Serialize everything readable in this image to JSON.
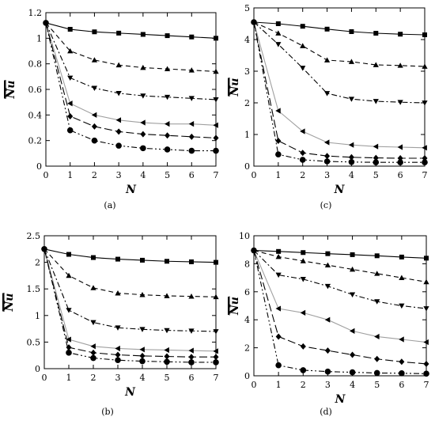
{
  "chart_data": [
    {
      "type": "line",
      "panel_label": "(a)",
      "xlabel": "N",
      "ylabel": "Nu",
      "xlim": [
        0,
        7
      ],
      "ylim": [
        0,
        1.2
      ],
      "xticks": [
        "0",
        "1",
        "2",
        "3",
        "4",
        "5",
        "6",
        "7"
      ],
      "yticks": [
        "0",
        "0.2",
        "0.4",
        "0.6",
        "0.8",
        "1",
        "1.2"
      ],
      "x": [
        0,
        1,
        2,
        3,
        4,
        5,
        6,
        7
      ],
      "series": [
        {
          "marker": "square",
          "style": "solid",
          "color": "#000000",
          "values": [
            1.12,
            1.07,
            1.05,
            1.04,
            1.03,
            1.02,
            1.01,
            1.0
          ]
        },
        {
          "marker": "triangle-up",
          "style": "dash",
          "color": "#000000",
          "values": [
            1.12,
            0.9,
            0.83,
            0.79,
            0.77,
            0.76,
            0.75,
            0.74
          ]
        },
        {
          "marker": "triangle-down",
          "style": "dashdot",
          "color": "#000000",
          "values": [
            1.12,
            0.69,
            0.61,
            0.57,
            0.55,
            0.54,
            0.53,
            0.52
          ]
        },
        {
          "marker": "triangle-left",
          "style": "solid",
          "color": "#a0a0a0",
          "values": [
            1.12,
            0.49,
            0.4,
            0.36,
            0.34,
            0.33,
            0.33,
            0.32
          ]
        },
        {
          "marker": "diamond",
          "style": "longdash",
          "color": "#000000",
          "values": [
            1.12,
            0.39,
            0.31,
            0.27,
            0.25,
            0.24,
            0.23,
            0.22
          ]
        },
        {
          "marker": "circle",
          "style": "dashdotdot",
          "color": "#000000",
          "values": [
            1.12,
            0.28,
            0.2,
            0.16,
            0.14,
            0.13,
            0.12,
            0.12
          ]
        }
      ]
    },
    {
      "type": "line",
      "panel_label": "(c)",
      "xlabel": "N",
      "ylabel": "Nu",
      "xlim": [
        0,
        7
      ],
      "ylim": [
        0,
        5
      ],
      "xticks": [
        "0",
        "1",
        "2",
        "3",
        "4",
        "5",
        "6",
        "7"
      ],
      "yticks": [
        "0",
        "1",
        "2",
        "3",
        "4",
        "5"
      ],
      "x": [
        0,
        1,
        2,
        3,
        4,
        5,
        6,
        7
      ],
      "series": [
        {
          "marker": "square",
          "style": "solid",
          "color": "#000000",
          "values": [
            4.55,
            4.5,
            4.42,
            4.33,
            4.25,
            4.2,
            4.17,
            4.15
          ]
        },
        {
          "marker": "triangle-up",
          "style": "dash",
          "color": "#000000",
          "values": [
            4.55,
            4.2,
            3.8,
            3.35,
            3.3,
            3.2,
            3.18,
            3.15
          ]
        },
        {
          "marker": "triangle-down",
          "style": "dashdot",
          "color": "#000000",
          "values": [
            4.55,
            3.85,
            3.1,
            2.3,
            2.12,
            2.05,
            2.02,
            2.0
          ]
        },
        {
          "marker": "triangle-left",
          "style": "solid",
          "color": "#a0a0a0",
          "values": [
            4.55,
            1.75,
            1.1,
            0.75,
            0.67,
            0.62,
            0.6,
            0.58
          ]
        },
        {
          "marker": "diamond",
          "style": "longdash",
          "color": "#000000",
          "values": [
            4.55,
            0.8,
            0.42,
            0.32,
            0.28,
            0.26,
            0.25,
            0.25
          ]
        },
        {
          "marker": "circle",
          "style": "dashdotdot",
          "color": "#000000",
          "values": [
            4.55,
            0.37,
            0.2,
            0.15,
            0.13,
            0.12,
            0.12,
            0.12
          ]
        }
      ]
    },
    {
      "type": "line",
      "panel_label": "(b)",
      "xlabel": "N",
      "ylabel": "Nu",
      "xlim": [
        0,
        7
      ],
      "ylim": [
        0,
        2.5
      ],
      "xticks": [
        "0",
        "1",
        "2",
        "3",
        "4",
        "5",
        "6",
        "7"
      ],
      "yticks": [
        "0",
        "0.5",
        "1",
        "1.5",
        "2",
        "2.5"
      ],
      "x": [
        0,
        1,
        2,
        3,
        4,
        5,
        6,
        7
      ],
      "series": [
        {
          "marker": "square",
          "style": "solid",
          "color": "#000000",
          "values": [
            2.25,
            2.15,
            2.09,
            2.06,
            2.04,
            2.02,
            2.01,
            2.0
          ]
        },
        {
          "marker": "triangle-up",
          "style": "dash",
          "color": "#000000",
          "values": [
            2.25,
            1.75,
            1.52,
            1.42,
            1.39,
            1.37,
            1.36,
            1.35
          ]
        },
        {
          "marker": "triangle-down",
          "style": "dashdot",
          "color": "#000000",
          "values": [
            2.25,
            1.1,
            0.87,
            0.77,
            0.74,
            0.72,
            0.71,
            0.7
          ]
        },
        {
          "marker": "triangle-left",
          "style": "solid",
          "color": "#a0a0a0",
          "values": [
            2.25,
            0.55,
            0.42,
            0.38,
            0.36,
            0.35,
            0.34,
            0.33
          ]
        },
        {
          "marker": "diamond",
          "style": "longdash",
          "color": "#000000",
          "values": [
            2.25,
            0.4,
            0.3,
            0.26,
            0.24,
            0.23,
            0.22,
            0.22
          ]
        },
        {
          "marker": "circle",
          "style": "dashdotdot",
          "color": "#000000",
          "values": [
            2.25,
            0.3,
            0.2,
            0.16,
            0.14,
            0.13,
            0.12,
            0.12
          ]
        }
      ]
    },
    {
      "type": "line",
      "panel_label": "(d)",
      "xlabel": "N",
      "ylabel": "Nu",
      "xlim": [
        0,
        7
      ],
      "ylim": [
        0,
        10
      ],
      "xticks": [
        "0",
        "1",
        "2",
        "3",
        "4",
        "5",
        "6",
        "7"
      ],
      "yticks": [
        "0",
        "2",
        "4",
        "6",
        "8",
        "10"
      ],
      "x": [
        0,
        1,
        2,
        3,
        4,
        5,
        6,
        7
      ],
      "series": [
        {
          "marker": "square",
          "style": "solid",
          "color": "#000000",
          "values": [
            8.95,
            8.88,
            8.8,
            8.72,
            8.65,
            8.57,
            8.48,
            8.4
          ]
        },
        {
          "marker": "triangle-up",
          "style": "dash",
          "color": "#000000",
          "values": [
            8.95,
            8.5,
            8.2,
            7.9,
            7.6,
            7.3,
            7.0,
            6.7
          ]
        },
        {
          "marker": "triangle-down",
          "style": "dashdot",
          "color": "#000000",
          "values": [
            8.95,
            7.2,
            6.9,
            6.4,
            5.8,
            5.3,
            5.0,
            4.8
          ]
        },
        {
          "marker": "triangle-left",
          "style": "solid",
          "color": "#a0a0a0",
          "values": [
            8.95,
            4.8,
            4.5,
            4.0,
            3.2,
            2.8,
            2.6,
            2.4
          ]
        },
        {
          "marker": "diamond",
          "style": "longdash",
          "color": "#000000",
          "values": [
            8.95,
            2.8,
            2.1,
            1.8,
            1.5,
            1.2,
            1.0,
            0.85
          ]
        },
        {
          "marker": "circle",
          "style": "dashdotdot",
          "color": "#000000",
          "values": [
            8.95,
            0.75,
            0.4,
            0.3,
            0.25,
            0.2,
            0.18,
            0.15
          ]
        }
      ]
    }
  ]
}
